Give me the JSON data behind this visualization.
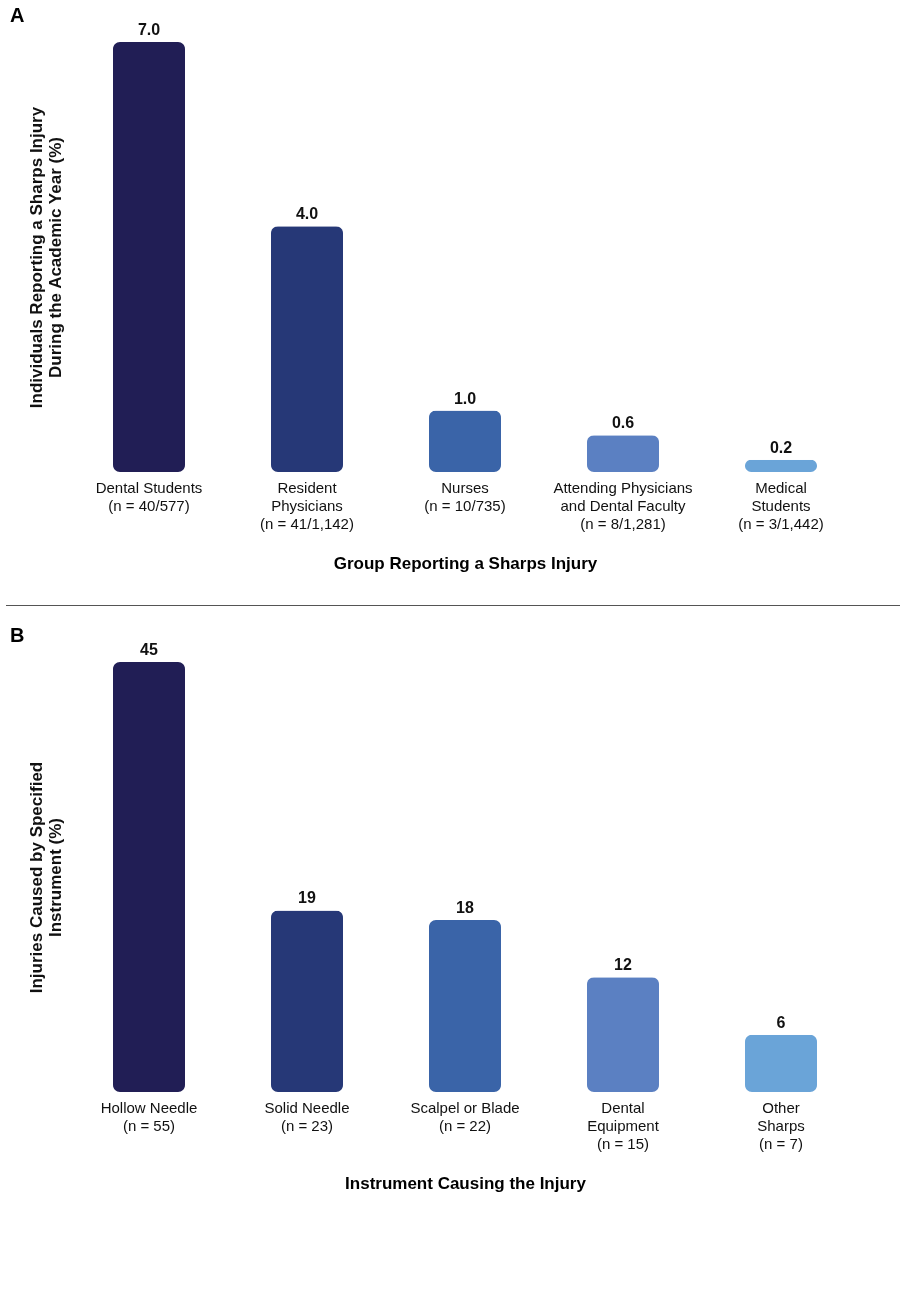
{
  "chart_data": [
    {
      "type": "bar",
      "title": "A",
      "xlabel": "Group Reporting a Sharps Injury",
      "ylabel": "Individuals Reporting a Sharps Injury\nDuring the Academic Year (%)",
      "categories": [
        "Dental Students\n(n = 40/577)",
        "Resident\nPhysicians\n(n = 41/1,142)",
        "Nurses\n(n = 10/735)",
        "Attending Physicians\nand Dental Faculty\n(n = 8/1,281)",
        "Medical\nStudents\n(n = 3/1,442)"
      ],
      "values": [
        7.0,
        4.0,
        1.0,
        0.6,
        0.2
      ],
      "value_labels": [
        "7.0",
        "4.0",
        "1.0",
        "0.6",
        "0.2"
      ],
      "colors": [
        "#211e55",
        "#263877",
        "#3a64a8",
        "#5b80c2",
        "#6aa4d8"
      ],
      "tick_labels": "x"
    },
    {
      "type": "bar",
      "title": "B",
      "xlabel": "Instrument Causing the Injury",
      "ylabel": "Injuries Caused by Specified\nInstrument (%)",
      "categories": [
        "Hollow Needle\n(n = 55)",
        "Solid Needle\n(n = 23)",
        "Scalpel or Blade\n(n = 22)",
        "Dental\nEquipment\n(n = 15)",
        "Other\nSharps\n(n = 7)"
      ],
      "values": [
        45,
        19,
        18,
        12,
        6
      ],
      "data_labels": true,
      "colors": [
        "#211e55",
        "#263877",
        "#3a64a8",
        "#5b80c2",
        "#6aa4d8"
      ],
      "tick_labels": "x"
    }
  ]
}
